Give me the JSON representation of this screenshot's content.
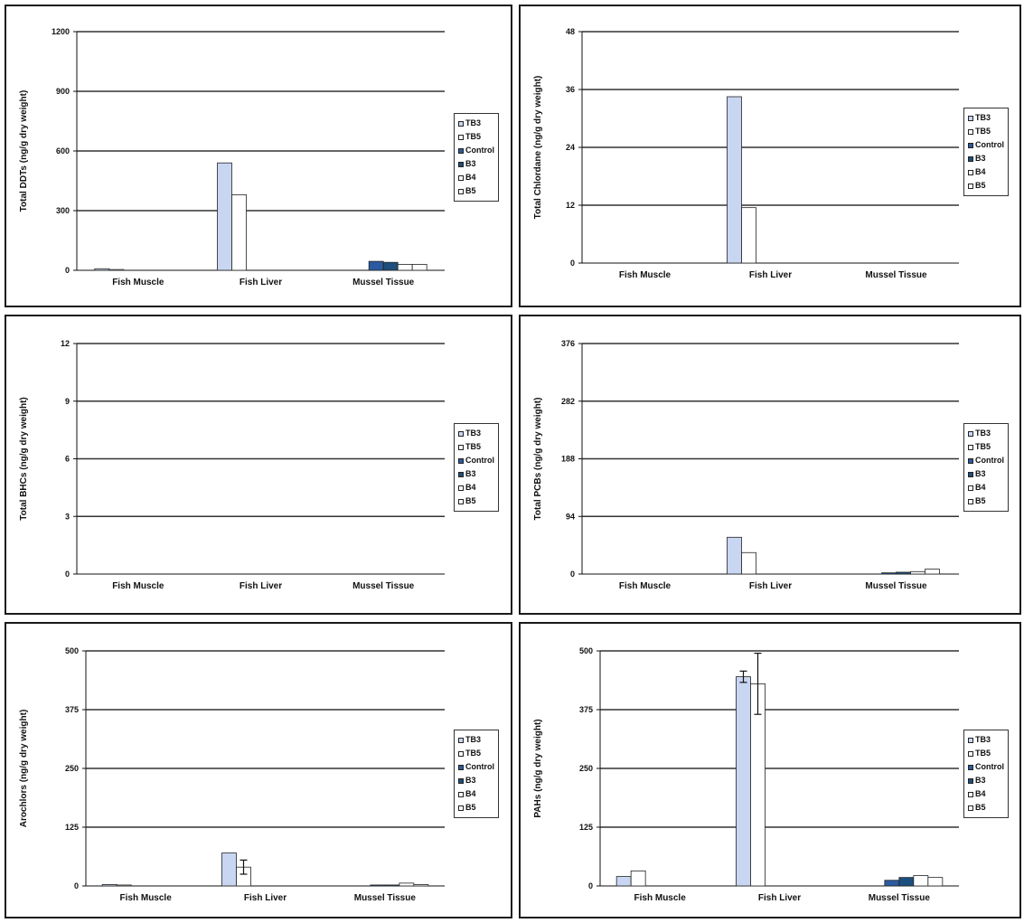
{
  "series_names": [
    "TB3",
    "TB5",
    "Control",
    "B3",
    "B4",
    "B5"
  ],
  "colors": {
    "TB3": "#c8d6f2",
    "TB5": "#ffffff",
    "Control": "#2b5aa0",
    "B3": "#1c4f7d",
    "B4": "#ffffff",
    "B5": "#ffffff",
    "gridline": "#333333",
    "axis": "#111111"
  },
  "chart_data": [
    {
      "type": "bar",
      "ylabel": "Total DDTs (ng/g dry weight)",
      "ylim": [
        0,
        1200
      ],
      "yticks": [
        "0",
        "300",
        "600",
        "900",
        "1200"
      ],
      "categories": [
        "Fish Muscle",
        "Fish Liver",
        "Mussel Tissue"
      ],
      "legend": [
        "TB3",
        "TB5",
        "Control",
        "B3",
        "B4",
        "B5"
      ],
      "grid": true,
      "legend_position": "right",
      "series": [
        {
          "name": "TB3",
          "values": [
            8,
            540,
            0
          ]
        },
        {
          "name": "TB5",
          "values": [
            4,
            380,
            0
          ]
        },
        {
          "name": "Control",
          "values": [
            0,
            0,
            45
          ]
        },
        {
          "name": "B3",
          "values": [
            0,
            0,
            40
          ]
        },
        {
          "name": "B4",
          "values": [
            0,
            0,
            30
          ]
        },
        {
          "name": "B5",
          "values": [
            0,
            0,
            30
          ]
        }
      ]
    },
    {
      "type": "bar",
      "ylabel": "Total Chlordane (ng/g dry weight)",
      "ylim": [
        0,
        48
      ],
      "yticks": [
        "0",
        "12",
        "24",
        "36",
        "48"
      ],
      "categories": [
        "Fish Muscle",
        "Fish Liver",
        "Mussel Tissue"
      ],
      "legend": [
        "TB3",
        "TB5",
        "Control",
        "B3",
        "B4",
        "B5"
      ],
      "grid": true,
      "legend_position": "right",
      "series": [
        {
          "name": "TB3",
          "values": [
            0,
            34.5,
            0
          ]
        },
        {
          "name": "TB5",
          "values": [
            0,
            11.5,
            0
          ]
        },
        {
          "name": "Control",
          "values": [
            0,
            0,
            0
          ]
        },
        {
          "name": "B3",
          "values": [
            0,
            0,
            0
          ]
        },
        {
          "name": "B4",
          "values": [
            0,
            0,
            0
          ]
        },
        {
          "name": "B5",
          "values": [
            0,
            0,
            0
          ]
        }
      ]
    },
    {
      "type": "bar",
      "ylabel": "Total BHCs (ng/g dry weight)",
      "ylim": [
        0,
        12
      ],
      "yticks": [
        "0",
        "3",
        "6",
        "9",
        "12"
      ],
      "categories": [
        "Fish Muscle",
        "Fish Liver",
        "Mussel Tissue"
      ],
      "legend": [
        "TB3",
        "TB5",
        "Control",
        "B3",
        "B4",
        "B5"
      ],
      "grid": true,
      "legend_position": "right",
      "series": [
        {
          "name": "TB3",
          "values": [
            0,
            0,
            0
          ]
        },
        {
          "name": "TB5",
          "values": [
            0,
            0,
            0
          ]
        },
        {
          "name": "Control",
          "values": [
            0,
            0,
            0
          ]
        },
        {
          "name": "B3",
          "values": [
            0,
            0,
            0
          ]
        },
        {
          "name": "B4",
          "values": [
            0,
            0,
            0
          ]
        },
        {
          "name": "B5",
          "values": [
            0,
            0,
            0
          ]
        }
      ]
    },
    {
      "type": "bar",
      "ylabel": "Total PCBs (ng/g dry weight)",
      "ylim": [
        0,
        376
      ],
      "yticks": [
        "0",
        "94",
        "188",
        "282",
        "376"
      ],
      "categories": [
        "Fish Muscle",
        "Fish Liver",
        "Mussel Tissue"
      ],
      "legend": [
        "TB3",
        "TB5",
        "Control",
        "B3",
        "B4",
        "B5"
      ],
      "grid": true,
      "legend_position": "right",
      "series": [
        {
          "name": "TB3",
          "values": [
            0,
            60,
            0
          ]
        },
        {
          "name": "TB5",
          "values": [
            0,
            35,
            0
          ]
        },
        {
          "name": "Control",
          "values": [
            0,
            0,
            2
          ]
        },
        {
          "name": "B3",
          "values": [
            0,
            0,
            3
          ]
        },
        {
          "name": "B4",
          "values": [
            0,
            0,
            4
          ]
        },
        {
          "name": "B5",
          "values": [
            0,
            0,
            8
          ]
        }
      ]
    },
    {
      "type": "bar",
      "ylabel": "Arochlors (ng/g dry weight)",
      "ylim": [
        0,
        500
      ],
      "yticks": [
        "0",
        "125",
        "250",
        "375",
        "500"
      ],
      "categories": [
        "Fish Muscle",
        "Fish Liver",
        "Mussel Tissue"
      ],
      "legend": [
        "TB3",
        "TB5",
        "Control",
        "B3",
        "B4",
        "B5"
      ],
      "grid": true,
      "legend_position": "right",
      "series": [
        {
          "name": "TB3",
          "values": [
            3,
            70,
            0
          ]
        },
        {
          "name": "TB5",
          "values": [
            2,
            40,
            0
          ]
        },
        {
          "name": "Control",
          "values": [
            0,
            0,
            2
          ]
        },
        {
          "name": "B3",
          "values": [
            0,
            0,
            2
          ]
        },
        {
          "name": "B4",
          "values": [
            0,
            0,
            6
          ]
        },
        {
          "name": "B5",
          "values": [
            0,
            0,
            3
          ]
        }
      ],
      "errors": [
        {
          "name": "TB5",
          "values": [
            0,
            15,
            0
          ]
        }
      ]
    },
    {
      "type": "bar",
      "ylabel": "PAHs (ng/g dry weight)",
      "ylim": [
        0,
        500
      ],
      "yticks": [
        "0",
        "125",
        "250",
        "375",
        "500"
      ],
      "categories": [
        "Fish Muscle",
        "Fish Liver",
        "Mussel Tissue"
      ],
      "legend": [
        "TB3",
        "TB5",
        "Control",
        "B3",
        "B4",
        "B5"
      ],
      "grid": true,
      "legend_position": "right",
      "series": [
        {
          "name": "TB3",
          "values": [
            20,
            445,
            0
          ]
        },
        {
          "name": "TB5",
          "values": [
            32,
            430,
            0
          ]
        },
        {
          "name": "Control",
          "values": [
            0,
            0,
            12
          ]
        },
        {
          "name": "B3",
          "values": [
            0,
            0,
            18
          ]
        },
        {
          "name": "B4",
          "values": [
            0,
            0,
            22
          ]
        },
        {
          "name": "B5",
          "values": [
            0,
            0,
            18
          ]
        }
      ],
      "errors": [
        {
          "name": "TB3",
          "values": [
            0,
            12,
            0
          ]
        },
        {
          "name": "TB5",
          "values": [
            0,
            65,
            0
          ]
        }
      ]
    }
  ]
}
